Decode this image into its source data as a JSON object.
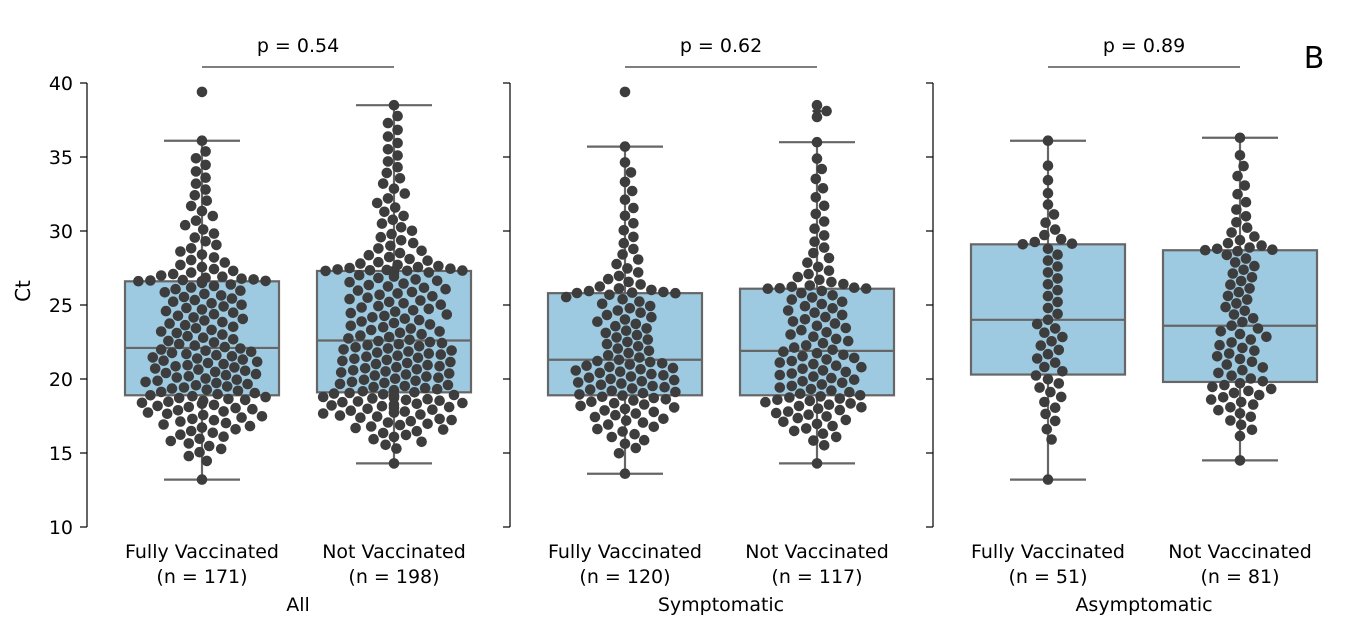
{
  "panel_label": "B",
  "y_axis_label": "Ct",
  "colors": {
    "box_fill": "#9ecae1",
    "box_edge": "#666666",
    "dot": "#3d3d3d",
    "axis": "#000000"
  },
  "chart_data": {
    "type": "box-swarm",
    "ylabel": "Ct",
    "ylim": [
      10,
      40
    ],
    "yticks": [
      10,
      15,
      20,
      25,
      30,
      35,
      40
    ],
    "panels": [
      {
        "label": "All",
        "p_value": "p = 0.54",
        "groups": [
          {
            "name": "Fully Vaccinated",
            "n_label": "(n = 171)",
            "n": 171,
            "whisker_low": 13.2,
            "q1": 18.9,
            "median": 22.1,
            "q3": 26.6,
            "whisker_high": 36.1,
            "outliers": [
              39.4
            ]
          },
          {
            "name": "Not Vaccinated",
            "n_label": "(n = 198)",
            "n": 198,
            "whisker_low": 14.3,
            "q1": 19.1,
            "median": 22.6,
            "q3": 27.3,
            "whisker_high": 38.5,
            "outliers": []
          }
        ]
      },
      {
        "label": "Symptomatic",
        "p_value": "p = 0.62",
        "groups": [
          {
            "name": "Fully Vaccinated",
            "n_label": "(n = 120)",
            "n": 120,
            "whisker_low": 13.6,
            "q1": 18.9,
            "median": 21.3,
            "q3": 25.8,
            "whisker_high": 35.7,
            "outliers": [
              39.4
            ]
          },
          {
            "name": "Not Vaccinated",
            "n_label": "(n = 117)",
            "n": 117,
            "whisker_low": 14.3,
            "q1": 18.9,
            "median": 21.9,
            "q3": 26.1,
            "whisker_high": 36.0,
            "outliers": [
              37.7,
              38.1,
              38.5
            ]
          }
        ]
      },
      {
        "label": "Asymptomatic",
        "p_value": "p = 0.89",
        "groups": [
          {
            "name": "Fully Vaccinated",
            "n_label": "(n = 51)",
            "n": 51,
            "whisker_low": 13.2,
            "q1": 20.3,
            "median": 24.0,
            "q3": 29.1,
            "whisker_high": 36.1,
            "outliers": []
          },
          {
            "name": "Not Vaccinated",
            "n_label": "(n = 81)",
            "n": 81,
            "whisker_low": 14.5,
            "q1": 19.8,
            "median": 23.6,
            "q3": 28.7,
            "whisker_high": 36.3,
            "outliers": []
          }
        ]
      }
    ]
  }
}
